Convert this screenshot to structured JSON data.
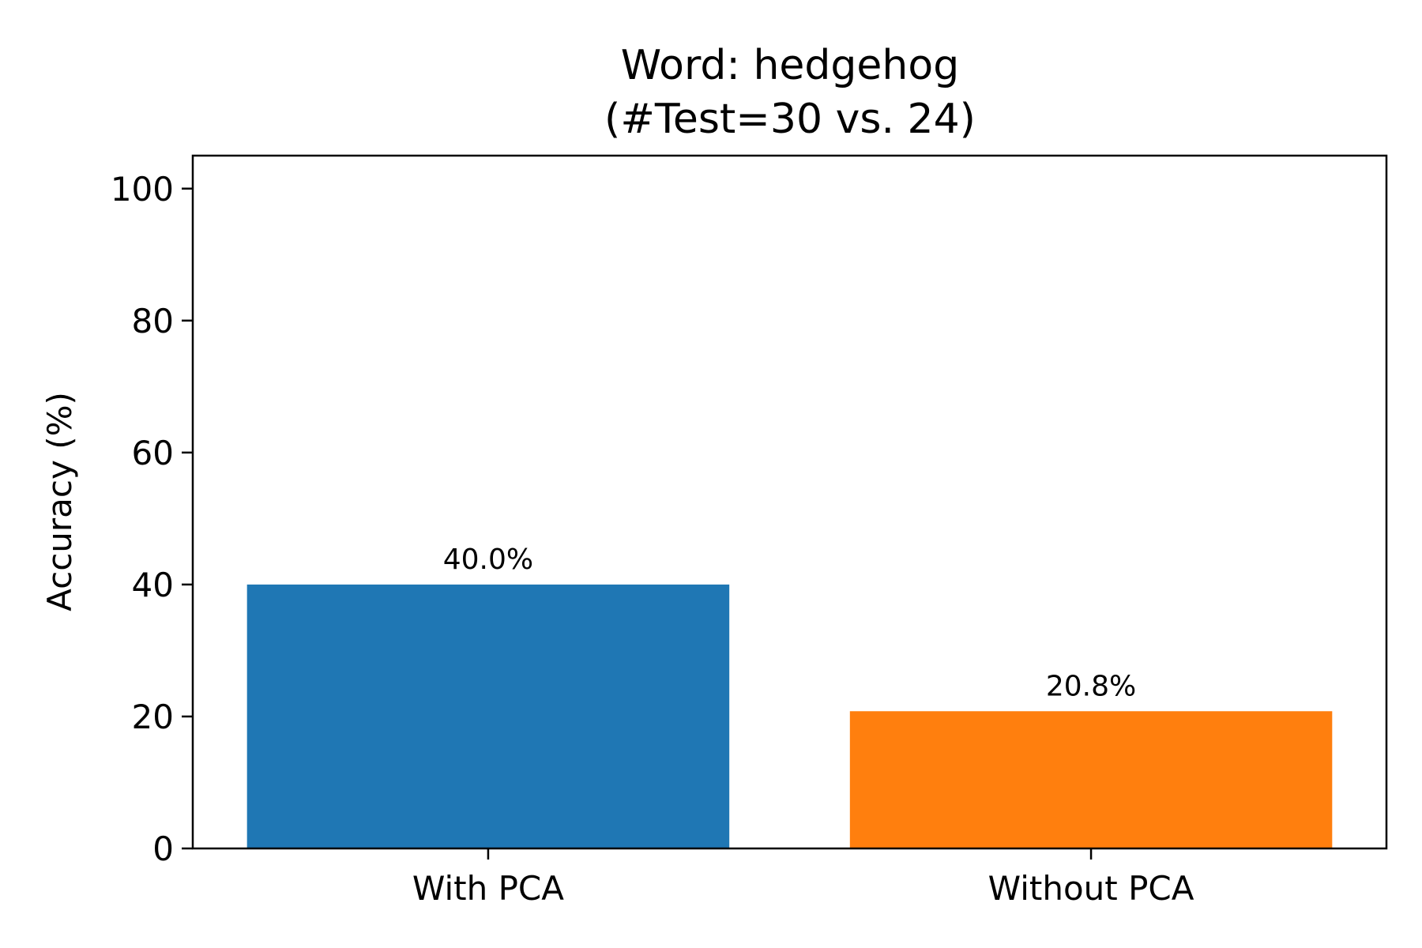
{
  "chart_data": {
    "type": "bar",
    "title_line1": "Word: hedgehog",
    "title_line2": "(#Test=30 vs. 24)",
    "xlabel": "",
    "ylabel": "Accuracy (%)",
    "ylim": [
      0,
      105
    ],
    "yticks": [
      0,
      20,
      40,
      60,
      80,
      100
    ],
    "categories": [
      "With PCA",
      "Without PCA"
    ],
    "values": [
      40.0,
      20.8
    ],
    "data_labels": [
      "40.0%",
      "20.8%"
    ],
    "colors": [
      "#1f77b4",
      "#ff7f0e"
    ],
    "grid": false,
    "legend": "none"
  }
}
